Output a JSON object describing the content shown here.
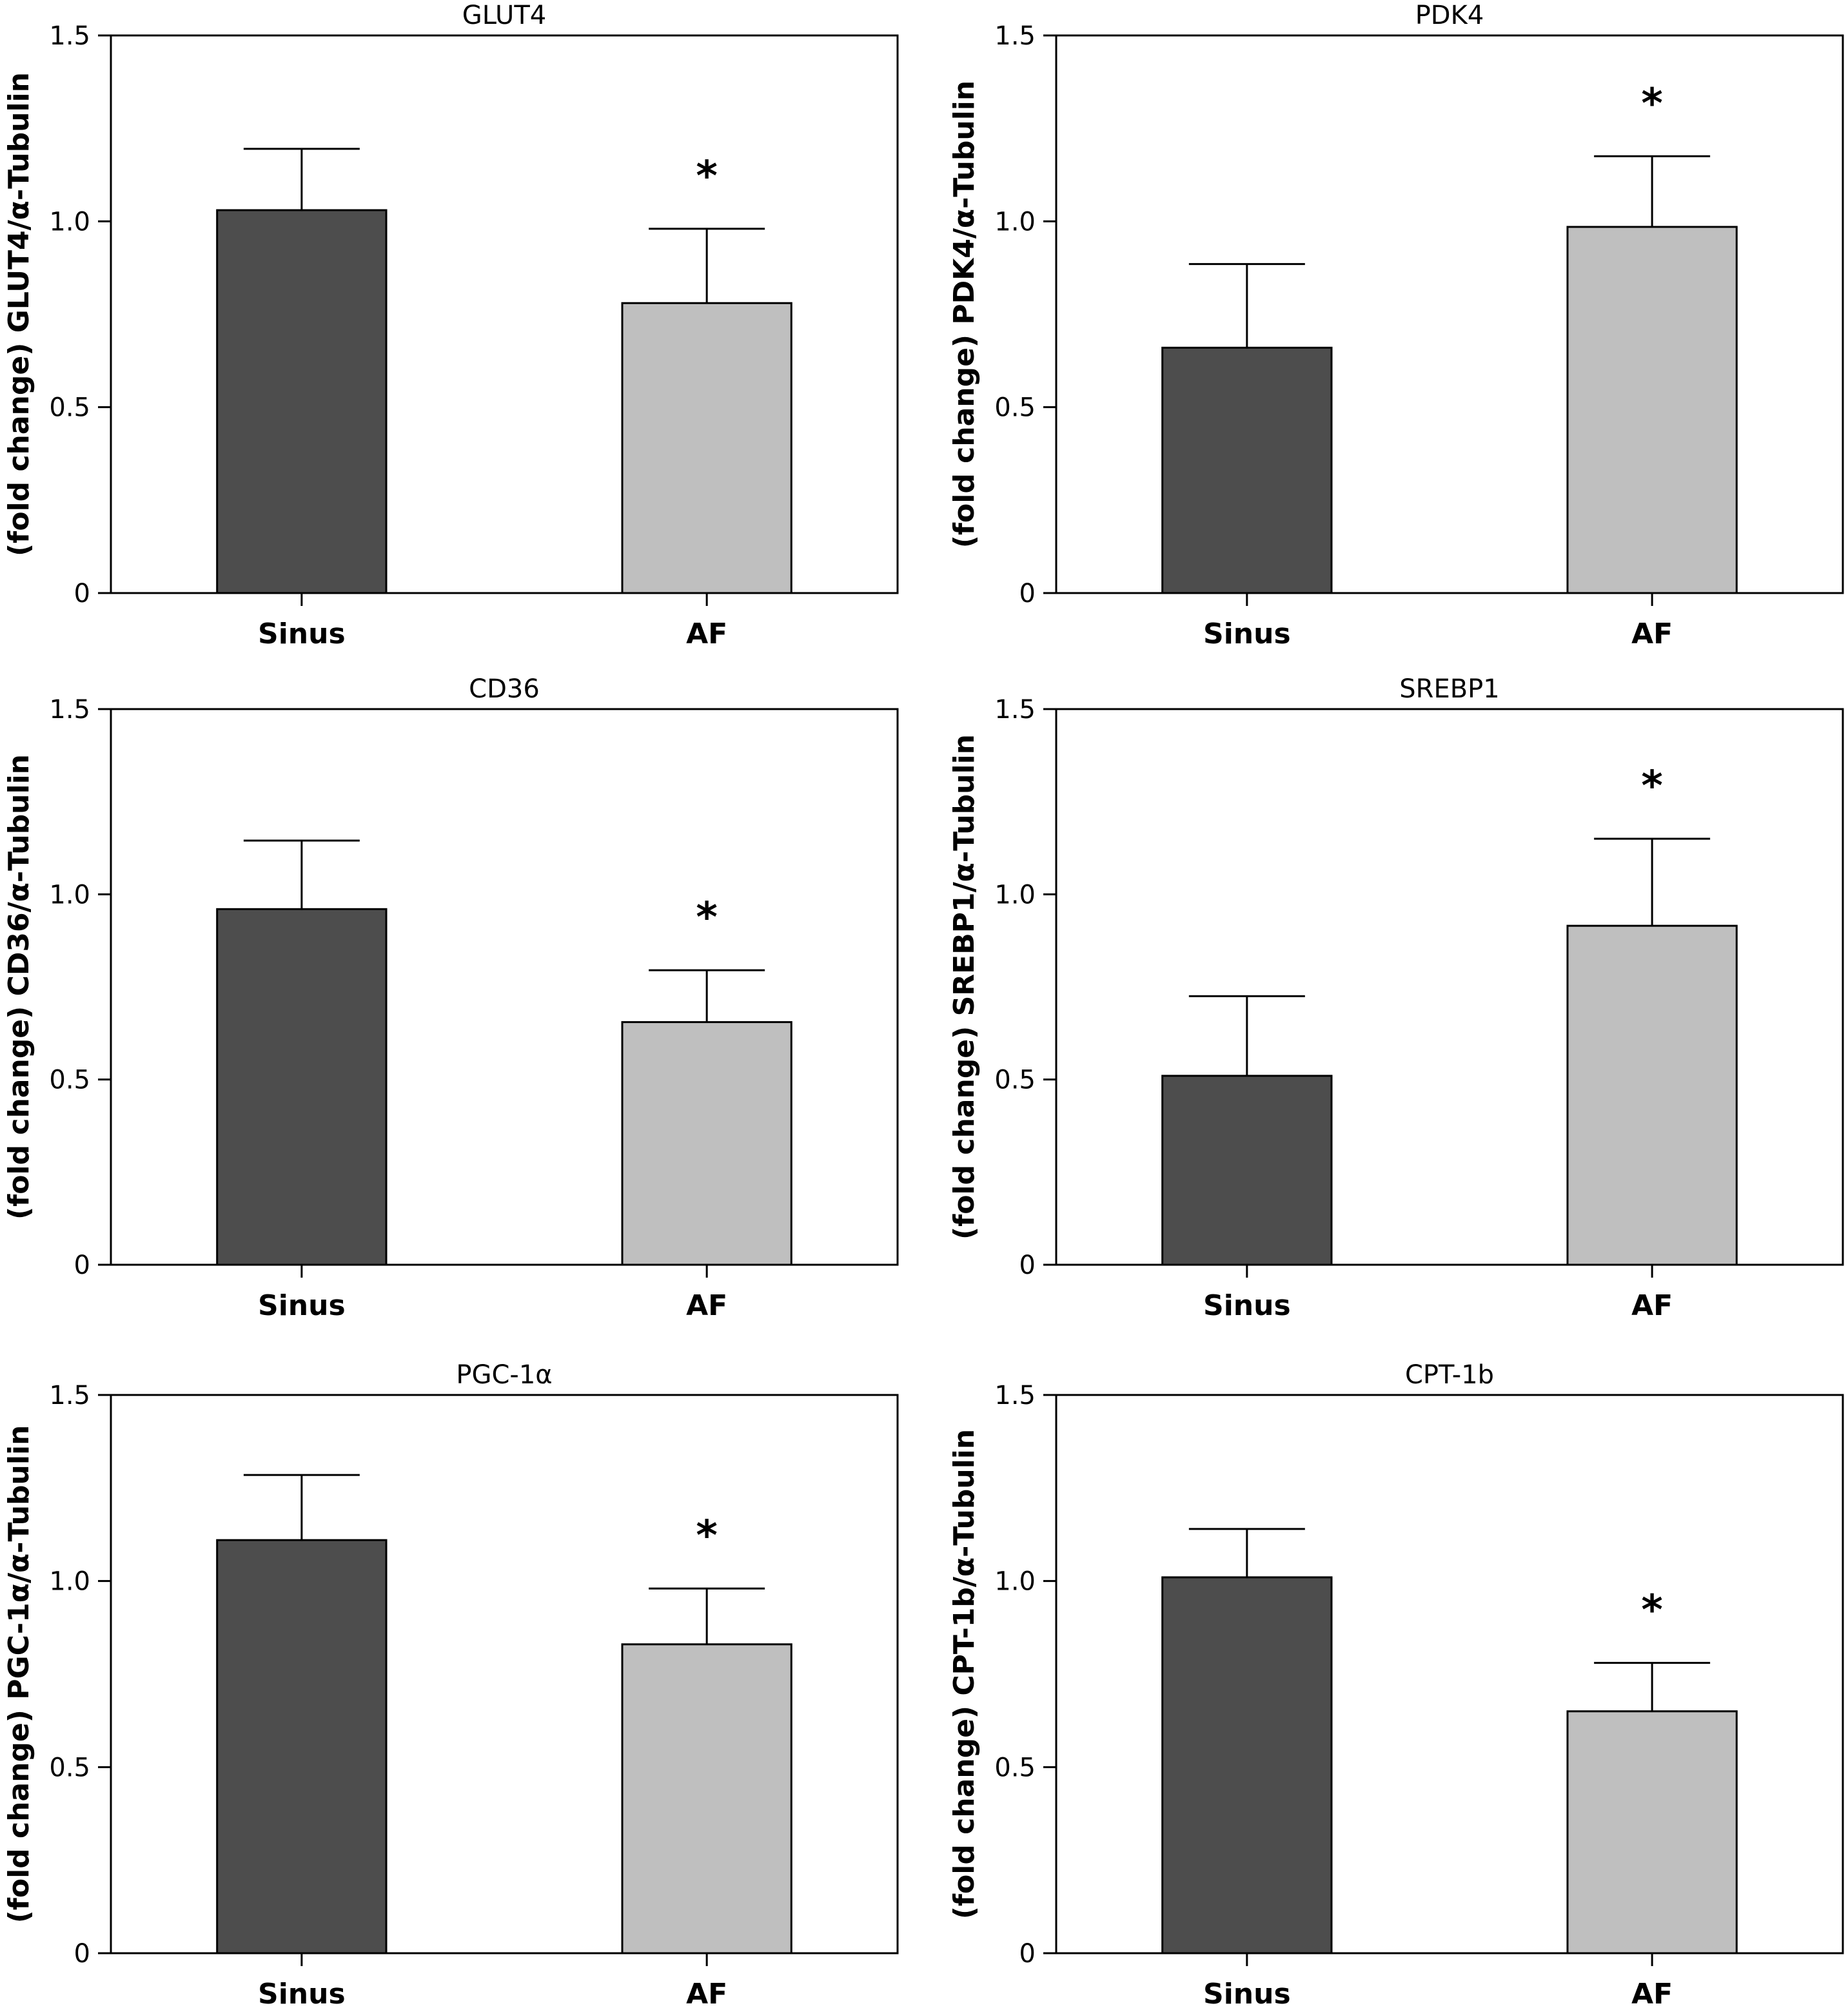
{
  "figure": {
    "colors": {
      "sinus": "#4d4d4d",
      "af": "#bfbfbf",
      "axis": "#000000"
    }
  },
  "chart_data": [
    {
      "type": "bar",
      "title": "GLUT4",
      "ylabel": "(fold change) GLUT4/α-Tubulin",
      "xlabel": "",
      "categories": [
        "Sinus",
        "AF"
      ],
      "values": [
        1.03,
        0.78
      ],
      "errors": [
        0.165,
        0.2
      ],
      "significance": [
        "",
        "*"
      ],
      "ylim": [
        0,
        1.5
      ],
      "yticks": [
        "0",
        "0.5",
        "1.0",
        "1.5"
      ],
      "grid": false
    },
    {
      "type": "bar",
      "title": "PDK4",
      "ylabel": "(fold change) PDK4/α-Tubulin",
      "xlabel": "",
      "categories": [
        "Sinus",
        "AF"
      ],
      "values": [
        0.66,
        0.985
      ],
      "errors": [
        0.225,
        0.19
      ],
      "significance": [
        "",
        "*"
      ],
      "ylim": [
        0,
        1.5
      ],
      "yticks": [
        "0",
        "0.5",
        "1.0",
        "1.5"
      ],
      "grid": false
    },
    {
      "type": "bar",
      "title": "CD36",
      "ylabel": "(fold change) CD36/α-Tubulin",
      "xlabel": "",
      "categories": [
        "Sinus",
        "AF"
      ],
      "values": [
        0.96,
        0.655
      ],
      "errors": [
        0.185,
        0.14
      ],
      "significance": [
        "",
        "*"
      ],
      "ylim": [
        0,
        1.5
      ],
      "yticks": [
        "0",
        "0.5",
        "1.0",
        "1.5"
      ],
      "grid": false
    },
    {
      "type": "bar",
      "title": "SREBP1",
      "ylabel": "(fold change) SREBP1/α-Tubulin",
      "xlabel": "",
      "categories": [
        "Sinus",
        "AF"
      ],
      "values": [
        0.51,
        0.915
      ],
      "errors": [
        0.215,
        0.235
      ],
      "significance": [
        "",
        "*"
      ],
      "ylim": [
        0,
        1.5
      ],
      "yticks": [
        "0",
        "0.5",
        "1.0",
        "1.5"
      ],
      "grid": false
    },
    {
      "type": "bar",
      "title": "PGC-1α",
      "ylabel": "(fold change) PGC-1α/α-Tubulin",
      "xlabel": "",
      "categories": [
        "Sinus",
        "AF"
      ],
      "values": [
        1.11,
        0.83
      ],
      "errors": [
        0.175,
        0.15
      ],
      "significance": [
        "",
        "*"
      ],
      "ylim": [
        0,
        1.5
      ],
      "yticks": [
        "0",
        "0.5",
        "1.0",
        "1.5"
      ],
      "grid": false
    },
    {
      "type": "bar",
      "title": "CPT-1b",
      "ylabel": "(fold change) CPT-1b/α-Tubulin",
      "xlabel": "",
      "categories": [
        "Sinus",
        "AF"
      ],
      "values": [
        1.01,
        0.65
      ],
      "errors": [
        0.13,
        0.13
      ],
      "significance": [
        "",
        "*"
      ],
      "ylim": [
        0,
        1.5
      ],
      "yticks": [
        "0",
        "0.5",
        "1.0",
        "1.5"
      ],
      "grid": false
    }
  ]
}
